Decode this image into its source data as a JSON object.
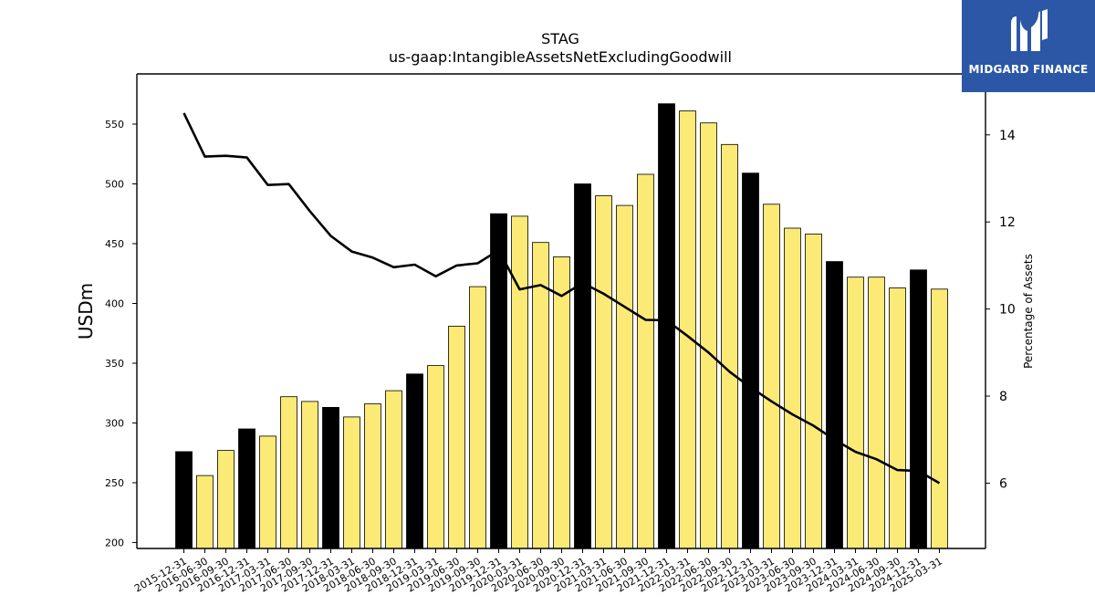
{
  "header": {
    "title": "STAG",
    "subtitle": "us-gaap:IntangibleAssetsNetExcludingGoodwill"
  },
  "logo": {
    "text": "MIDGARD FINANCE",
    "background": "#2b57a6"
  },
  "chart_data": {
    "type": "bar",
    "title": "STAG",
    "subtitle": "us-gaap:IntangibleAssetsNetExcludingGoodwill",
    "ylabel": "USDm",
    "y2label": "Percentage of Assets",
    "ylim": [
      195,
      592
    ],
    "y2lim": [
      4.5,
      15.4
    ],
    "yticks": [
      200,
      250,
      300,
      350,
      400,
      450,
      500,
      550
    ],
    "y2ticks": [
      6,
      8,
      10,
      12,
      14
    ],
    "categories": [
      "2015-12-31",
      "2016-06-30",
      "2016-09-30",
      "2016-12-31",
      "2017-03-31",
      "2017-06-30",
      "2017-09-30",
      "2017-12-31",
      "2018-03-31",
      "2018-06-30",
      "2018-09-30",
      "2018-12-31",
      "2019-03-31",
      "2019-06-30",
      "2019-09-30",
      "2019-12-31",
      "2020-03-31",
      "2020-06-30",
      "2020-09-30",
      "2020-12-31",
      "2021-03-31",
      "2021-06-30",
      "2021-09-30",
      "2021-12-31",
      "2022-03-31",
      "2022-06-30",
      "2022-09-30",
      "2022-12-31",
      "2023-03-31",
      "2023-06-30",
      "2023-09-30",
      "2023-12-31",
      "2024-03-31",
      "2024-06-30",
      "2024-09-30",
      "2024-12-31",
      "2025-03-31"
    ],
    "series": [
      {
        "type": "bar",
        "values": [
          276,
          256,
          277,
          295,
          289,
          322,
          318,
          313,
          305,
          316,
          327,
          341,
          348,
          381,
          414,
          475,
          473,
          451,
          439,
          500,
          490,
          482,
          508,
          567,
          561,
          551,
          533,
          509,
          483,
          463,
          458,
          435,
          422,
          422,
          413,
          428,
          412
        ],
        "highlight": [
          true,
          false,
          false,
          true,
          false,
          false,
          false,
          true,
          false,
          false,
          false,
          true,
          false,
          false,
          false,
          true,
          false,
          false,
          false,
          true,
          false,
          false,
          false,
          true,
          false,
          false,
          false,
          true,
          false,
          false,
          false,
          true,
          false,
          false,
          false,
          true,
          false
        ],
        "color": "#fcea76",
        "highlight_color": "#000000"
      },
      {
        "type": "line",
        "axis": "right",
        "values": [
          14.5,
          13.5,
          13.52,
          13.48,
          12.85,
          12.87,
          12.25,
          11.68,
          11.32,
          11.18,
          10.96,
          11.02,
          10.75,
          11.0,
          11.05,
          11.35,
          10.45,
          10.55,
          10.3,
          10.6,
          10.35,
          10.05,
          9.75,
          9.74,
          9.38,
          9.0,
          8.56,
          8.2,
          7.88,
          7.58,
          7.32,
          7.0,
          6.72,
          6.55,
          6.3,
          6.28,
          6.0
        ],
        "color": "#000000"
      }
    ]
  }
}
